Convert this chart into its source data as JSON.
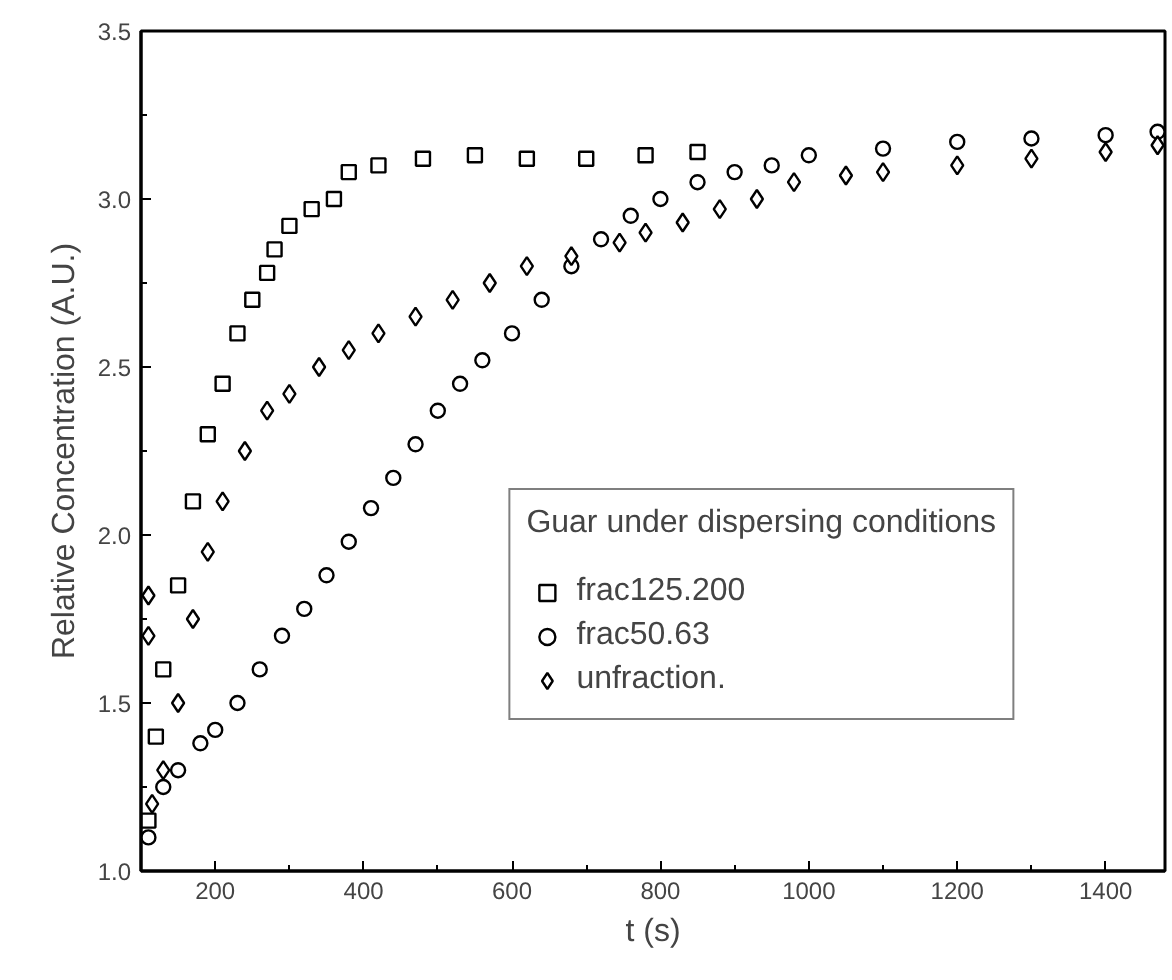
{
  "chart_data": {
    "type": "scatter",
    "xlabel": "t (s)",
    "ylabel": "Relative Concentration (A.U.)",
    "legend_title": "Guar under dispersing conditions",
    "legend": "bottom right",
    "grid": false,
    "xlim": [
      100,
      1480
    ],
    "ylim": [
      1.0,
      3.5
    ],
    "xticks": [
      200,
      400,
      600,
      800,
      1000,
      1200,
      1400
    ],
    "yticks": [
      {
        "value": 1,
        "label": "1.0"
      },
      1.5,
      {
        "value": 2,
        "label": "2.0"
      },
      2.5,
      {
        "value": 3,
        "label": "3.0"
      },
      3.5
    ],
    "series": [
      {
        "name": "frac125.200",
        "color": "#000000",
        "marker": "square",
        "x": [
          110,
          120,
          130,
          150,
          170,
          190,
          210,
          230,
          250,
          270,
          280,
          300,
          330,
          360,
          380,
          420,
          480,
          550,
          620,
          700,
          780,
          850
        ],
        "values": [
          1.15,
          1.4,
          1.6,
          1.85,
          2.1,
          2.3,
          2.45,
          2.6,
          2.7,
          2.78,
          2.85,
          2.92,
          2.97,
          3.0,
          3.08,
          3.1,
          3.12,
          3.13,
          3.12,
          3.12,
          3.13,
          3.14
        ]
      },
      {
        "name": "frac50.63",
        "color": "#000000",
        "marker": "circle",
        "x": [
          110,
          130,
          150,
          180,
          200,
          230,
          260,
          290,
          320,
          350,
          380,
          410,
          440,
          470,
          500,
          530,
          560,
          600,
          640,
          680,
          720,
          760,
          800,
          850,
          900,
          950,
          1000,
          1100,
          1200,
          1300,
          1400,
          1470
        ],
        "values": [
          1.1,
          1.25,
          1.3,
          1.38,
          1.42,
          1.5,
          1.6,
          1.7,
          1.78,
          1.88,
          1.98,
          2.08,
          2.17,
          2.27,
          2.37,
          2.45,
          2.52,
          2.6,
          2.7,
          2.8,
          2.88,
          2.95,
          3.0,
          3.05,
          3.08,
          3.1,
          3.13,
          3.15,
          3.17,
          3.18,
          3.19,
          3.2
        ]
      },
      {
        "name": "unfraction.",
        "color": "#000000",
        "marker": "diamond",
        "x": [
          110,
          110,
          115,
          130,
          150,
          170,
          190,
          210,
          240,
          270,
          300,
          340,
          380,
          420,
          470,
          520,
          570,
          620,
          680,
          745,
          780,
          830,
          880,
          930,
          980,
          1050,
          1100,
          1200,
          1300,
          1400,
          1470
        ],
        "values": [
          1.82,
          1.7,
          1.2,
          1.3,
          1.5,
          1.75,
          1.95,
          2.1,
          2.25,
          2.37,
          2.42,
          2.5,
          2.55,
          2.6,
          2.65,
          2.7,
          2.75,
          2.8,
          2.83,
          2.87,
          2.9,
          2.93,
          2.97,
          3.0,
          3.05,
          3.07,
          3.08,
          3.1,
          3.12,
          3.14,
          3.16
        ]
      }
    ]
  }
}
